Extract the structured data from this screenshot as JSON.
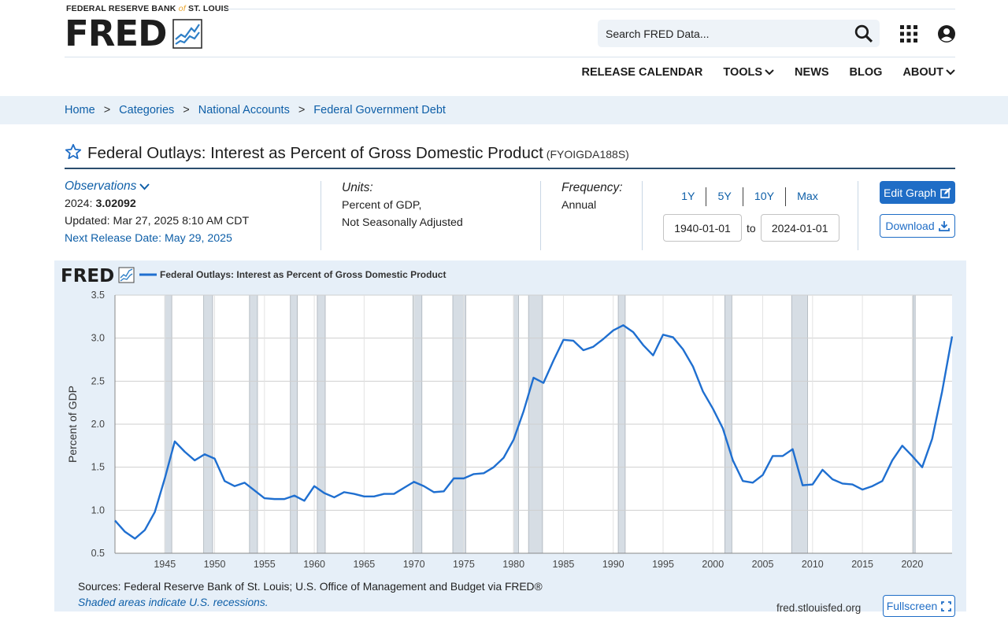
{
  "header": {
    "org_prefix": "FEDERAL RESERVE BANK",
    "org_of": "of",
    "org_suffix": "ST. LOUIS",
    "logo_text": "FRED",
    "search_placeholder": "Search FRED Data...",
    "nav": [
      {
        "label": "RELEASE CALENDAR",
        "has_dropdown": false
      },
      {
        "label": "TOOLS",
        "has_dropdown": true
      },
      {
        "label": "NEWS",
        "has_dropdown": false
      },
      {
        "label": "BLOG",
        "has_dropdown": false
      },
      {
        "label": "ABOUT",
        "has_dropdown": true
      }
    ]
  },
  "breadcrumb": [
    "Home",
    "Categories",
    "National Accounts",
    "Federal Government Debt"
  ],
  "breadcrumb_sep": ">",
  "series": {
    "title": "Federal Outlays: Interest as Percent of Gross Domestic Product",
    "id": "(FYOIGDA188S)"
  },
  "meta": {
    "observations_label": "Observations",
    "obs_year": "2024:",
    "obs_value": "3.02092",
    "updated": "Updated: Mar 27, 2025 8:10 AM CDT",
    "next_release": "Next Release Date: May 29, 2025",
    "units_label": "Units:",
    "units_line1": "Percent of GDP,",
    "units_line2": "Not Seasonally Adjusted",
    "frequency_label": "Frequency:",
    "frequency_value": "Annual",
    "range_links": [
      "1Y",
      "5Y",
      "10Y",
      "Max"
    ],
    "start_date": "1940-01-01",
    "to_label": "to",
    "end_date": "2024-01-01",
    "edit_graph_label": "Edit Graph",
    "download_label": "Download"
  },
  "chart_footer": {
    "sources": "Sources: Federal Reserve Bank of St. Louis; U.S. Office of Management and Budget via FRED®",
    "shaded_note": "Shaded areas indicate U.S. recessions.",
    "url": "fred.stlouisfed.org",
    "fullscreen_label": "Fullscreen"
  },
  "colors": {
    "line": "#1f6fd0",
    "recession": "#d6dde4",
    "panel": "#e6eff8",
    "accent": "#1f6dc6"
  },
  "chart_data": {
    "type": "line",
    "legend_logo": "FRED",
    "title": "Federal Outlays: Interest as Percent of Gross Domestic Product",
    "xlabel": "",
    "ylabel": "Percent of GDP",
    "xlim": [
      1940,
      2024
    ],
    "ylim": [
      0.5,
      3.5
    ],
    "yticks": [
      0.5,
      1.0,
      1.5,
      2.0,
      2.5,
      3.0,
      3.5
    ],
    "ytick_labels": [
      "0.5",
      "1.0",
      "1.5",
      "2.0",
      "2.5",
      "3.0",
      "3.5"
    ],
    "xticks": [
      1945,
      1950,
      1955,
      1960,
      1965,
      1970,
      1975,
      1980,
      1985,
      1990,
      1995,
      2000,
      2005,
      2010,
      2015,
      2020
    ],
    "xtick_labels": [
      "1945",
      "1950",
      "1955",
      "1960",
      "1965",
      "1970",
      "1975",
      "1980",
      "1985",
      "1990",
      "1995",
      "2000",
      "2005",
      "2010",
      "2015",
      "2020"
    ],
    "recessions": [
      [
        1945.0,
        1945.7
      ],
      [
        1948.9,
        1949.8
      ],
      [
        1953.5,
        1954.3
      ],
      [
        1957.6,
        1958.3
      ],
      [
        1960.3,
        1961.1
      ],
      [
        1969.9,
        1970.8
      ],
      [
        1973.9,
        1975.2
      ],
      [
        1980.0,
        1980.5
      ],
      [
        1981.5,
        1982.9
      ],
      [
        1990.5,
        1991.2
      ],
      [
        2001.2,
        2001.9
      ],
      [
        2007.9,
        2009.5
      ],
      [
        2020.1,
        2020.3
      ]
    ],
    "series": [
      {
        "name": "Federal Outlays: Interest as Percent of Gross Domestic Product",
        "x": [
          1940,
          1941,
          1942,
          1943,
          1944,
          1945,
          1946,
          1947,
          1948,
          1949,
          1950,
          1951,
          1952,
          1953,
          1954,
          1955,
          1956,
          1957,
          1958,
          1959,
          1960,
          1961,
          1962,
          1963,
          1964,
          1965,
          1966,
          1967,
          1968,
          1969,
          1970,
          1971,
          1972,
          1973,
          1974,
          1975,
          1976,
          1977,
          1978,
          1979,
          1980,
          1981,
          1982,
          1983,
          1984,
          1985,
          1986,
          1987,
          1988,
          1989,
          1990,
          1991,
          1992,
          1993,
          1994,
          1995,
          1996,
          1997,
          1998,
          1999,
          2000,
          2001,
          2002,
          2003,
          2004,
          2005,
          2006,
          2007,
          2008,
          2009,
          2010,
          2011,
          2012,
          2013,
          2014,
          2015,
          2016,
          2017,
          2018,
          2019,
          2020,
          2021,
          2022,
          2023,
          2024
        ],
        "values": [
          0.88,
          0.75,
          0.67,
          0.77,
          0.98,
          1.37,
          1.8,
          1.68,
          1.58,
          1.65,
          1.6,
          1.34,
          1.28,
          1.32,
          1.23,
          1.14,
          1.13,
          1.13,
          1.17,
          1.11,
          1.28,
          1.2,
          1.15,
          1.21,
          1.19,
          1.16,
          1.16,
          1.19,
          1.19,
          1.26,
          1.33,
          1.28,
          1.21,
          1.22,
          1.37,
          1.37,
          1.42,
          1.43,
          1.5,
          1.61,
          1.82,
          2.15,
          2.54,
          2.48,
          2.74,
          2.98,
          2.97,
          2.86,
          2.9,
          2.99,
          3.09,
          3.15,
          3.07,
          2.92,
          2.8,
          3.04,
          3.01,
          2.87,
          2.67,
          2.38,
          2.18,
          1.95,
          1.58,
          1.34,
          1.32,
          1.41,
          1.63,
          1.63,
          1.71,
          1.29,
          1.3,
          1.47,
          1.36,
          1.31,
          1.3,
          1.24,
          1.28,
          1.34,
          1.58,
          1.75,
          1.63,
          1.5,
          1.83,
          2.38,
          3.02
        ]
      }
    ]
  }
}
